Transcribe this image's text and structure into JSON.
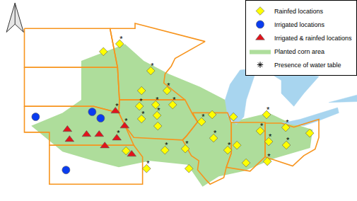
{
  "chart_data": {
    "type": "map",
    "xlim": [
      -106,
      -77.45
    ],
    "ylim": [
      35.7,
      51.2
    ],
    "tick_labels": false,
    "legend": "top right",
    "series": [
      {
        "name": "Rainfed locations",
        "color": "#ffff00",
        "marker": "diamond",
        "lon": [
          -97.73,
          -96.43,
          -93.94,
          -94.68,
          -92.64,
          -94.85,
          -93.55,
          -92.19,
          -94.68,
          -93.44,
          -93.38,
          -95.92,
          -94.28,
          -92.81,
          -91.18,
          -90.89,
          -89.88,
          -89.03,
          -88.92,
          -87.79,
          -87.33,
          -87.05,
          -84.68,
          -85.19,
          -84.51,
          -83.15,
          -83.1,
          -81.23,
          -84.62,
          -86.32
        ],
        "lat": [
          47.22,
          47.82,
          45.74,
          44.21,
          44.21,
          43.01,
          43.12,
          43.12,
          42.03,
          42.3,
          41.48,
          39.57,
          38.2,
          39.62,
          39.73,
          38.2,
          41.81,
          42.36,
          40.55,
          39.62,
          42.19,
          40.0,
          42.36,
          41.1,
          40.28,
          41.37,
          40.01,
          40.93,
          38.75,
          38.64
        ],
        "water_table": [
          false,
          true,
          true,
          false,
          true,
          true,
          true,
          true,
          true,
          true,
          false,
          false,
          true,
          true,
          true,
          false,
          true,
          false,
          true,
          true,
          false,
          false,
          true,
          true,
          true,
          true,
          true,
          false,
          true,
          false
        ]
      },
      {
        "name": "Irrigated locations",
        "color": "#0a3cf0",
        "marker": "circle",
        "lon": [
          -103.15,
          -98.63,
          -97.95,
          -100.72
        ],
        "lat": [
          42.19,
          42.57,
          42.08,
          38.09
        ],
        "water_table": [
          false,
          false,
          false,
          false
        ]
      },
      {
        "name": "Irrigated & rainfed locations",
        "color": "#e3121b",
        "marker": "triangle-up",
        "lon": [
          -96.77,
          -100.61,
          -100.44,
          -99.08,
          -98.07,
          -97.62,
          -96.66,
          -95.47,
          -96.03
        ],
        "lat": [
          42.63,
          41.21,
          40.44,
          40.83,
          40.83,
          39.95,
          40.55,
          39.3,
          41.48
        ],
        "water_table": [
          true,
          false,
          false,
          false,
          false,
          false,
          true,
          false,
          true
        ]
      }
    ],
    "corn_area": {
      "name": "Planted corn area",
      "color": "#6cc24a",
      "polygon": [
        [
          -99.5,
          46.5
        ],
        [
          -96,
          47.8
        ],
        [
          -94.5,
          46.5
        ],
        [
          -92.5,
          45.5
        ],
        [
          -90,
          44.5
        ],
        [
          -88,
          43.5
        ],
        [
          -87.5,
          41.8
        ],
        [
          -84.5,
          42.5
        ],
        [
          -83,
          41.8
        ],
        [
          -81,
          41.2
        ],
        [
          -81.2,
          39.8
        ],
        [
          -84,
          39
        ],
        [
          -86.5,
          38
        ],
        [
          -88.5,
          37.6
        ],
        [
          -89.8,
          36.8
        ],
        [
          -91,
          38.5
        ],
        [
          -94,
          38.8
        ],
        [
          -96.5,
          38.3
        ],
        [
          -98.5,
          38.8
        ],
        [
          -101,
          39.5
        ],
        [
          -103.5,
          41.5
        ],
        [
          -101,
          42.5
        ],
        [
          -99.5,
          43.5
        ]
      ]
    },
    "water_table": {
      "name": "Presence of water table",
      "symbol": "*"
    },
    "boundaries": {
      "color": "#f7941d",
      "polygons": [
        [
          [
            -104.05,
            49
          ],
          [
            -97.2,
            49
          ],
          [
            -96.6,
            46
          ],
          [
            -104.05,
            46
          ]
        ],
        [
          [
            -104.05,
            46
          ],
          [
            -96.6,
            46
          ],
          [
            -96.45,
            43.5
          ],
          [
            -96.5,
            42.5
          ],
          [
            -98.5,
            43
          ],
          [
            -104.05,
            43
          ]
        ],
        [
          [
            -104.05,
            43
          ],
          [
            -98.5,
            43
          ],
          [
            -96.5,
            42.5
          ],
          [
            -96,
            41.5
          ],
          [
            -95.3,
            40
          ],
          [
            -102.05,
            40
          ],
          [
            -102.05,
            41
          ],
          [
            -104.05,
            41
          ]
        ],
        [
          [
            -102.05,
            40
          ],
          [
            -95.3,
            40
          ],
          [
            -94.6,
            39.1
          ],
          [
            -94.6,
            37
          ],
          [
            -102.05,
            37
          ]
        ],
        [
          [
            -97.2,
            49
          ],
          [
            -95.2,
            49
          ],
          [
            -95.2,
            49.4
          ],
          [
            -94.8,
            49.3
          ],
          [
            -89.6,
            48
          ],
          [
            -92,
            46.7
          ],
          [
            -92.3,
            46.1
          ],
          [
            -92.8,
            45.5
          ],
          [
            -92.9,
            44.8
          ],
          [
            -91.2,
            43.5
          ],
          [
            -96.45,
            43.5
          ],
          [
            -96.6,
            46
          ]
        ],
        [
          [
            -96.45,
            43.5
          ],
          [
            -91.2,
            43.5
          ],
          [
            -90.6,
            42.4
          ],
          [
            -90.2,
            41.8
          ],
          [
            -91.1,
            40.7
          ],
          [
            -91.4,
            40.4
          ],
          [
            -95.3,
            40.6
          ],
          [
            -96,
            41.5
          ],
          [
            -96.5,
            42.5
          ]
        ],
        [
          [
            -90.6,
            42.5
          ],
          [
            -87.8,
            42.5
          ],
          [
            -87.5,
            41.7
          ],
          [
            -87.5,
            39.4
          ],
          [
            -87.9,
            38.3
          ],
          [
            -88.1,
            37.5
          ],
          [
            -89.2,
            37
          ],
          [
            -89.5,
            37.3
          ],
          [
            -90.2,
            38.1
          ],
          [
            -90.1,
            38.8
          ],
          [
            -90.7,
            39.2
          ],
          [
            -91.4,
            40.4
          ],
          [
            -91.1,
            40.7
          ],
          [
            -90.2,
            41.8
          ]
        ],
        [
          [
            -87.5,
            41.76
          ],
          [
            -84.8,
            41.76
          ],
          [
            -84.8,
            39.1
          ],
          [
            -86,
            38
          ],
          [
            -87.9,
            38.3
          ],
          [
            -87.5,
            39.4
          ]
        ],
        [
          [
            -84.8,
            41.7
          ],
          [
            -83.5,
            41.7
          ],
          [
            -82.5,
            41.4
          ],
          [
            -80.5,
            42
          ],
          [
            -80.5,
            40.6
          ],
          [
            -80.8,
            39.7
          ],
          [
            -81.7,
            39.2
          ],
          [
            -82.6,
            38.4
          ],
          [
            -84.8,
            39.1
          ]
        ]
      ]
    },
    "lakes": {
      "color": "#a8d5ef",
      "polygons": [
        [
          [
            -87.8,
            42.2
          ],
          [
            -87.1,
            41.6
          ],
          [
            -86.5,
            42.2
          ],
          [
            -86.3,
            43.5
          ],
          [
            -85.6,
            45.5
          ],
          [
            -85,
            46
          ],
          [
            -86.8,
            45.8
          ],
          [
            -87.6,
            44.7
          ],
          [
            -88,
            43.5
          ]
        ],
        [
          [
            -84.5,
            45.6
          ],
          [
            -82.5,
            45.6
          ],
          [
            -80.5,
            45.3
          ],
          [
            -81.7,
            44
          ],
          [
            -82.5,
            43
          ],
          [
            -83.5,
            44
          ],
          [
            -83.5,
            45
          ]
        ],
        [
          [
            -83.5,
            41.7
          ],
          [
            -82,
            42
          ],
          [
            -79,
            42.9
          ],
          [
            -78.9,
            42.5
          ],
          [
            -80.5,
            41.9
          ],
          [
            -81.7,
            41.5
          ]
        ],
        [
          [
            -79.7,
            43.3
          ],
          [
            -76.2,
            44.2
          ],
          [
            -76.3,
            43.4
          ]
        ]
      ]
    }
  }
}
